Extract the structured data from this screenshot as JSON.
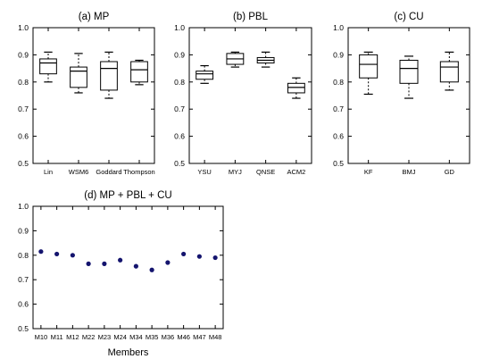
{
  "chart_data": [
    {
      "type": "box",
      "title": "(a) MP",
      "categories": [
        "Lin",
        "WSM6",
        "Goddard",
        "Thompson"
      ],
      "boxes": [
        {
          "min": 0.8,
          "q1": 0.83,
          "median": 0.87,
          "q3": 0.885,
          "max": 0.91
        },
        {
          "min": 0.76,
          "q1": 0.78,
          "median": 0.84,
          "q3": 0.855,
          "max": 0.905
        },
        {
          "min": 0.74,
          "q1": 0.77,
          "median": 0.85,
          "q3": 0.875,
          "max": 0.91
        },
        {
          "min": 0.79,
          "q1": 0.8,
          "median": 0.845,
          "q3": 0.875,
          "max": 0.88
        }
      ],
      "ylim": [
        0.5,
        1.0
      ],
      "yticks": [
        "0.5",
        "0.6",
        "0.7",
        "0.8",
        "0.9",
        "1.0"
      ],
      "xlabel": "",
      "ylabel": ""
    },
    {
      "type": "box",
      "title": "(b) PBL",
      "categories": [
        "YSU",
        "MYJ",
        "QNSE",
        "ACM2"
      ],
      "boxes": [
        {
          "min": 0.795,
          "q1": 0.81,
          "median": 0.83,
          "q3": 0.84,
          "max": 0.86
        },
        {
          "min": 0.855,
          "q1": 0.865,
          "median": 0.885,
          "q3": 0.905,
          "max": 0.91
        },
        {
          "min": 0.855,
          "q1": 0.87,
          "median": 0.88,
          "q3": 0.89,
          "max": 0.91
        },
        {
          "min": 0.74,
          "q1": 0.76,
          "median": 0.78,
          "q3": 0.795,
          "max": 0.815
        }
      ],
      "ylim": [
        0.5,
        1.0
      ],
      "yticks": [
        "0.5",
        "0.6",
        "0.7",
        "0.8",
        "0.9",
        "1.0"
      ],
      "xlabel": "",
      "ylabel": ""
    },
    {
      "type": "box",
      "title": "(c) CU",
      "categories": [
        "KF",
        "BMJ",
        "GD"
      ],
      "boxes": [
        {
          "min": 0.755,
          "q1": 0.815,
          "median": 0.865,
          "q3": 0.9,
          "max": 0.91
        },
        {
          "min": 0.74,
          "q1": 0.795,
          "median": 0.85,
          "q3": 0.88,
          "max": 0.895
        },
        {
          "min": 0.77,
          "q1": 0.8,
          "median": 0.855,
          "q3": 0.875,
          "max": 0.91
        }
      ],
      "ylim": [
        0.5,
        1.0
      ],
      "yticks": [
        "0.5",
        "0.6",
        "0.7",
        "0.8",
        "0.9",
        "1.0"
      ],
      "xlabel": "",
      "ylabel": ""
    },
    {
      "type": "scatter",
      "title": "(d) MP + PBL + CU",
      "categories": [
        "M10",
        "M11",
        "M12",
        "M22",
        "M23",
        "M24",
        "M34",
        "M35",
        "M36",
        "M46",
        "M47",
        "M48"
      ],
      "values": [
        0.815,
        0.805,
        0.8,
        0.765,
        0.765,
        0.78,
        0.755,
        0.74,
        0.77,
        0.805,
        0.795,
        0.79
      ],
      "marker_color": "#14146e",
      "ylim": [
        0.5,
        1.0
      ],
      "yticks": [
        "0.5",
        "0.6",
        "0.7",
        "0.8",
        "0.9",
        "1.0"
      ],
      "xlabel": "Members",
      "ylabel": ""
    }
  ]
}
